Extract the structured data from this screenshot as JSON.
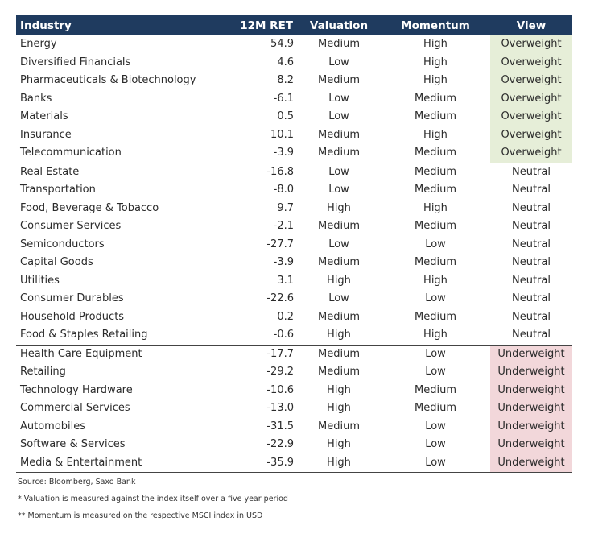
{
  "header": {
    "industry": "Industry",
    "ret": "12M RET",
    "valuation": "Valuation",
    "momentum": "Momentum",
    "view": "View"
  },
  "colors": {
    "header_bg": "#1f3b5f",
    "overweight_bg": "#e6eed8",
    "underweight_bg": "#f2d7da"
  },
  "rows": [
    {
      "industry": "Energy",
      "ret": "54.9",
      "valuation": "Medium",
      "momentum": "High",
      "view": "Overweight"
    },
    {
      "industry": "Diversified Financials",
      "ret": "4.6",
      "valuation": "Low",
      "momentum": "High",
      "view": "Overweight"
    },
    {
      "industry": "Pharmaceuticals & Biotechnology",
      "ret": "8.2",
      "valuation": "Medium",
      "momentum": "High",
      "view": "Overweight"
    },
    {
      "industry": "Banks",
      "ret": "-6.1",
      "valuation": "Low",
      "momentum": "Medium",
      "view": "Overweight"
    },
    {
      "industry": "Materials",
      "ret": "0.5",
      "valuation": "Low",
      "momentum": "Medium",
      "view": "Overweight"
    },
    {
      "industry": "Insurance",
      "ret": "10.1",
      "valuation": "Medium",
      "momentum": "High",
      "view": "Overweight"
    },
    {
      "industry": "Telecommunication",
      "ret": "-3.9",
      "valuation": "Medium",
      "momentum": "Medium",
      "view": "Overweight"
    },
    {
      "industry": "Real Estate",
      "ret": "-16.8",
      "valuation": "Low",
      "momentum": "Medium",
      "view": "Neutral"
    },
    {
      "industry": "Transportation",
      "ret": "-8.0",
      "valuation": "Low",
      "momentum": "Medium",
      "view": "Neutral"
    },
    {
      "industry": "Food, Beverage & Tobacco",
      "ret": "9.7",
      "valuation": "High",
      "momentum": "High",
      "view": "Neutral"
    },
    {
      "industry": "Consumer Services",
      "ret": "-2.1",
      "valuation": "Medium",
      "momentum": "Medium",
      "view": "Neutral"
    },
    {
      "industry": "Semiconductors",
      "ret": "-27.7",
      "valuation": "Low",
      "momentum": "Low",
      "view": "Neutral"
    },
    {
      "industry": "Capital Goods",
      "ret": "-3.9",
      "valuation": "Medium",
      "momentum": "Medium",
      "view": "Neutral"
    },
    {
      "industry": "Utilities",
      "ret": "3.1",
      "valuation": "High",
      "momentum": "High",
      "view": "Neutral"
    },
    {
      "industry": "Consumer Durables",
      "ret": "-22.6",
      "valuation": "Low",
      "momentum": "Low",
      "view": "Neutral"
    },
    {
      "industry": "Household Products",
      "ret": "0.2",
      "valuation": "Medium",
      "momentum": "Medium",
      "view": "Neutral"
    },
    {
      "industry": "Food & Staples Retailing",
      "ret": "-0.6",
      "valuation": "High",
      "momentum": "High",
      "view": "Neutral"
    },
    {
      "industry": "Health Care Equipment",
      "ret": "-17.7",
      "valuation": "Medium",
      "momentum": "Low",
      "view": "Underweight"
    },
    {
      "industry": "Retailing",
      "ret": "-29.2",
      "valuation": "Medium",
      "momentum": "Low",
      "view": "Underweight"
    },
    {
      "industry": "Technology Hardware",
      "ret": "-10.6",
      "valuation": "High",
      "momentum": "Medium",
      "view": "Underweight"
    },
    {
      "industry": "Commercial Services",
      "ret": "-13.0",
      "valuation": "High",
      "momentum": "Medium",
      "view": "Underweight"
    },
    {
      "industry": "Automobiles",
      "ret": "-31.5",
      "valuation": "Medium",
      "momentum": "Low",
      "view": "Underweight"
    },
    {
      "industry": "Software & Services",
      "ret": "-22.9",
      "valuation": "High",
      "momentum": "Low",
      "view": "Underweight"
    },
    {
      "industry": "Media & Entertainment",
      "ret": "-35.9",
      "valuation": "High",
      "momentum": "Low",
      "view": "Underweight"
    }
  ],
  "notes": {
    "source": "Source: Bloomberg, Saxo Bank",
    "valuation_note": "* Valuation is measured against the index itself over a five year period",
    "momentum_note": "** Momentum is measured on the respective MSCI index in USD"
  }
}
